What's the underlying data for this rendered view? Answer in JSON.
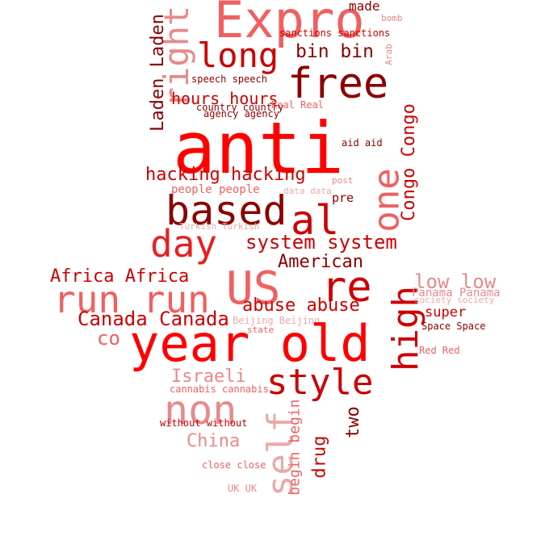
{
  "palette": {
    "deep_red": "#8b0000",
    "red": "#cc0000",
    "bright_red": "#ff0000",
    "salmon": "#f06060",
    "pink": "#e88a8a",
    "light_pink": "#eaaaaa"
  },
  "words": {
    "expro": "Expro",
    "made": "made",
    "bomb": "bomb",
    "sanctions": "sanctions sanctions",
    "long": "long",
    "bin_bin": "bin bin",
    "arab": "Arab",
    "right": "right",
    "laden": "Laden Laden",
    "free": "free",
    "speech": "speech speech",
    "hours": "hours hours",
    "real": "Real Real",
    "country": "country country",
    "agency": "agency agency",
    "congo": "Congo Congo",
    "anti": "anti",
    "aid": "aid aid",
    "hacking": "hacking hacking",
    "one": "one",
    "post": "post",
    "people": "people people",
    "data": "data data",
    "pre": "pre",
    "based": "based",
    "al": "al",
    "turkish": "Turkish Turkish",
    "day": "day",
    "system": "system system",
    "american": "American",
    "africa": "Africa Africa",
    "low": "low low",
    "us": "US",
    "re": "re",
    "run": "run run",
    "high": "high",
    "panama": "Panama Panama",
    "society": "society society",
    "abuse": "abuse abuse",
    "super": "super",
    "canada": "Canada Canada",
    "beijing": "Beijing Beijing",
    "space": "Space Space",
    "state": "state",
    "co": "co",
    "year_old": "year old",
    "red": "Red Red",
    "israeli": "Israeli",
    "style": "style",
    "cannabis": "cannabis cannabis",
    "non": "non",
    "self": "self",
    "begin": "begin begin",
    "two": "two",
    "without": "without without",
    "china": "China",
    "drug": "drug",
    "close": "close close",
    "uk": "UK UK"
  }
}
